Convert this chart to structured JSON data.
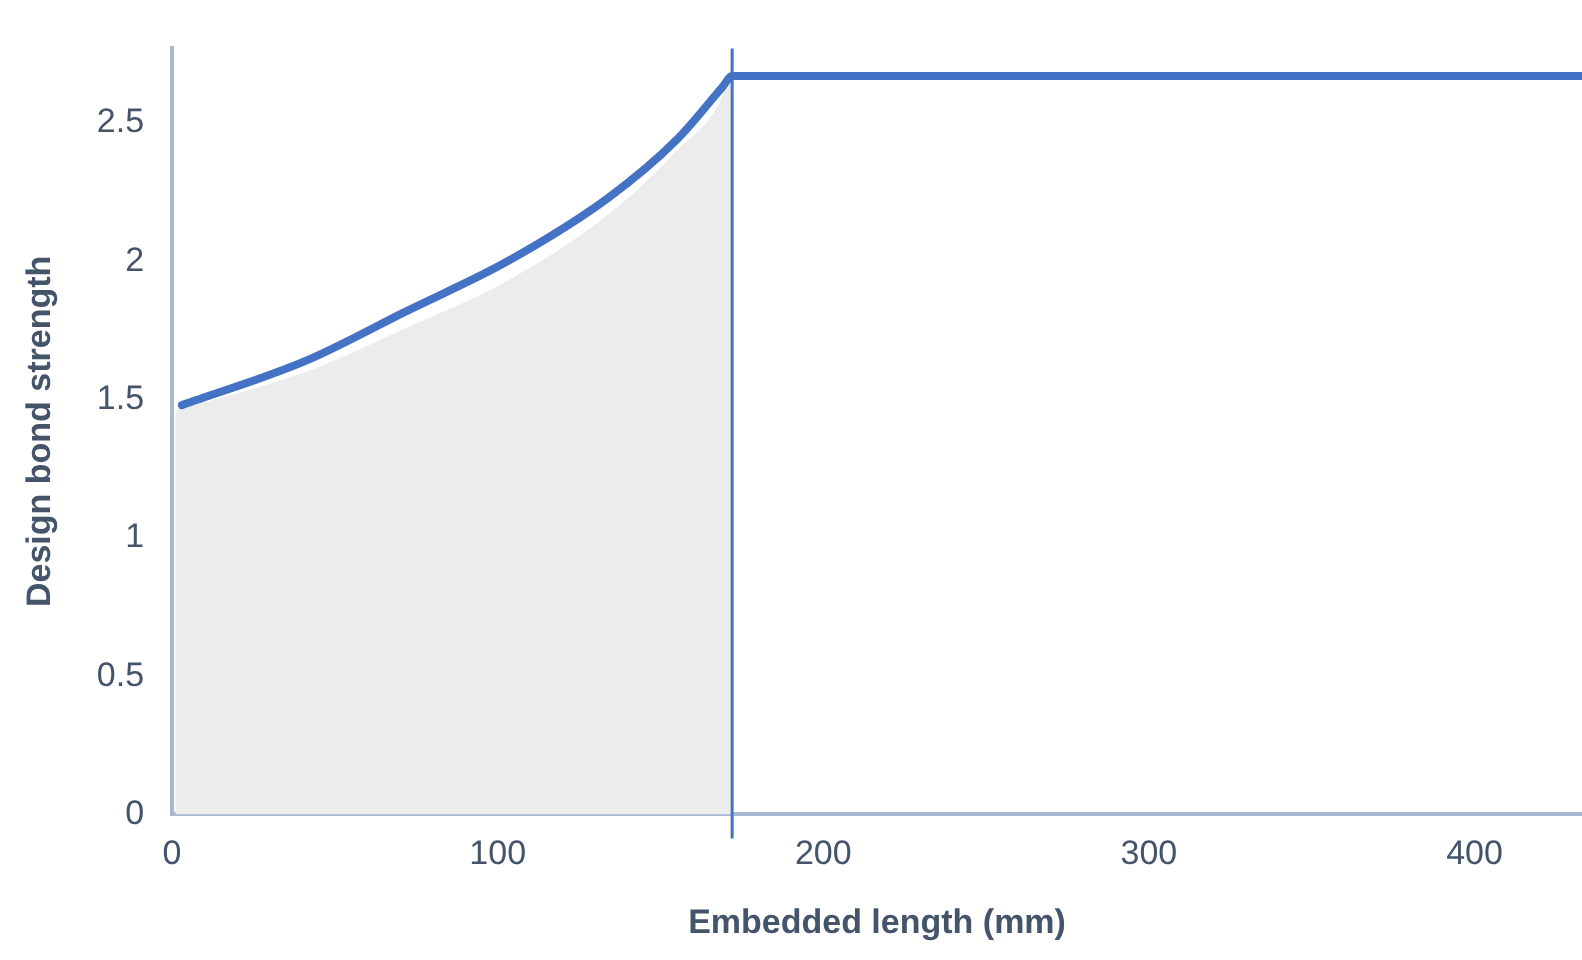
{
  "chart_data": {
    "type": "line",
    "xlabel": "Embedded length (mm)",
    "ylabel": "Design bond strength",
    "xlim": [
      0,
      433
    ],
    "xticks": [
      0,
      100,
      200,
      300,
      400
    ],
    "ylim": [
      0,
      2.77
    ],
    "yticks": [
      0,
      0.5,
      1,
      1.5,
      2,
      2.5
    ],
    "grid": false,
    "legend": false,
    "marker": "none",
    "line_style": "solid",
    "series": [
      {
        "type": "area",
        "color": "#ececec",
        "x": [
          1,
          41,
          72,
          103,
          134,
          155,
          169,
          172
        ],
        "values": [
          1.46,
          1.6,
          1.76,
          1.93,
          2.17,
          2.4,
          2.6,
          2.72
        ]
      },
      {
        "type": "line",
        "color": "#4472c4",
        "x": [
          3,
          41,
          72,
          103,
          134,
          155,
          169,
          172,
          433
        ],
        "values": [
          1.48,
          1.64,
          1.82,
          2.0,
          2.23,
          2.44,
          2.63,
          2.67,
          2.67
        ]
      }
    ],
    "ref_lines": [
      {
        "axis": "x",
        "value": 172,
        "color": "#4472c4"
      }
    ]
  }
}
